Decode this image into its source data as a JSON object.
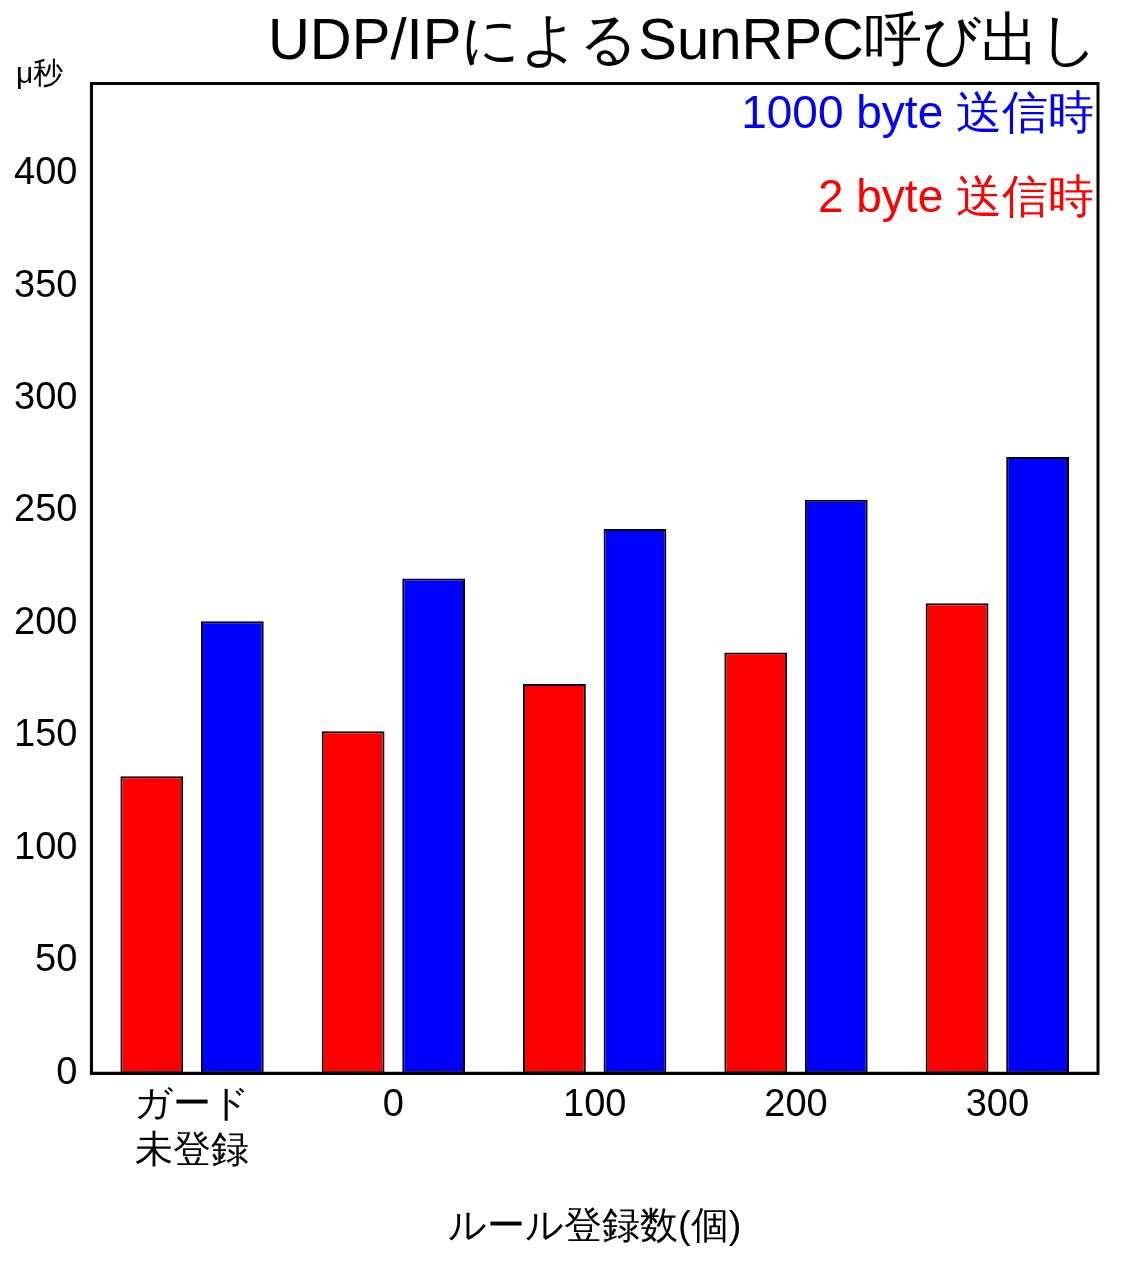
{
  "chart_data": {
    "type": "bar",
    "title": "UDP/IPによるSunRPC呼び出し",
    "ylabel": "μ秒",
    "xlabel": "ルール登録数(個)",
    "categories": [
      "ガード未登録",
      "0",
      "100",
      "200",
      "300"
    ],
    "series": [
      {
        "name": "2 byte 送信時",
        "color": "#ff0000",
        "values": [
          132,
          152,
          173,
          187,
          209
        ]
      },
      {
        "name": "1000 byte 送信時",
        "color": "#0000ff",
        "values": [
          201,
          220,
          242,
          255,
          274
        ]
      }
    ],
    "ylim": [
      0,
      440
    ],
    "yticks": [
      0,
      50,
      100,
      150,
      200,
      250,
      300,
      350,
      400
    ],
    "grid": false,
    "legend": "top right"
  }
}
